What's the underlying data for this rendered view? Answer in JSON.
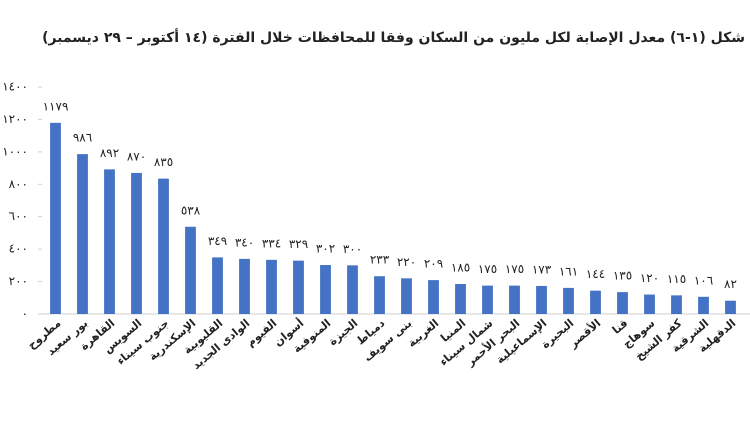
{
  "chart_data": {
    "type": "bar",
    "title": "شكل (١-٦) معدل الإصابة لكل مليون من السكان وفقا للمحافظات خلال الفترة (١٤ أكتوبر – ٢٩ ديسمبر)",
    "categories": [
      "مطروح",
      "بور سعيد",
      "القاهرة",
      "السويس",
      "جنوب سيناء",
      "الإسكندرية",
      "القليوبية",
      "الوادى الجديد",
      "الفيوم",
      "أسوان",
      "المنوفية",
      "الجيزة",
      "دمياط",
      "بنى سويف",
      "الغربية",
      "المنيا",
      "شمال سيناء",
      "البحر الأحمر",
      "الإسماعيلية",
      "البحيرة",
      "الأقصر",
      "قنا",
      "سوهاج",
      "كفر الشيخ",
      "الشرقية",
      "الدقهلية"
    ],
    "values": [
      1179,
      986,
      892,
      870,
      835,
      538,
      349,
      340,
      334,
      329,
      302,
      300,
      233,
      220,
      209,
      185,
      175,
      175,
      173,
      161,
      144,
      135,
      120,
      115,
      106,
      82
    ],
    "value_labels": [
      "١١٧٩",
      "٩٨٦",
      "٨٩٢",
      "٨٧٠",
      "٨٣٥",
      "٥٣٨",
      "٣٤٩",
      "٣٤٠",
      "٣٣٤",
      "٣٢٩",
      "٣٠٢",
      "٣٠٠",
      "٢٣٣",
      "٢٢٠",
      "٢٠٩",
      "١٨٥",
      "١٧٥",
      "١٧٥",
      "١٧٣",
      "١٦١",
      "١٤٤",
      "١٣٥",
      "١٢٠",
      "١١٥",
      "١٠٦",
      "٨٢"
    ],
    "color": "#4472c4",
    "ylim": [
      0,
      1400
    ],
    "yticks": [
      {
        "value": 0,
        "label": "٠"
      },
      {
        "value": 200,
        "label": "٢٠٠"
      },
      {
        "value": 400,
        "label": "٤٠٠"
      },
      {
        "value": 600,
        "label": "٦٠٠"
      },
      {
        "value": 800,
        "label": "٨٠٠"
      },
      {
        "value": 1000,
        "label": "١٠٠٠"
      },
      {
        "value": 1200,
        "label": "١٢٠٠"
      },
      {
        "value": 1400,
        "label": "١٤٠٠"
      }
    ],
    "grid": false
  }
}
